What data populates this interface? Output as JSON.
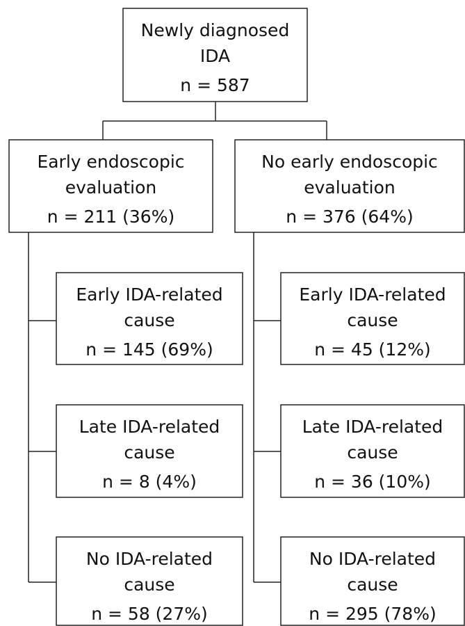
{
  "nodes": [
    {
      "lines": [
        "Newly diagnosed",
        "IDA"
      ],
      "count": "n = 587"
    },
    {
      "lines": [
        "Early endoscopic",
        "evaluation"
      ],
      "count": "n = 211 (36%)"
    },
    {
      "lines": [
        "No early endoscopic",
        "evaluation"
      ],
      "count": "n = 376 (64%)"
    },
    {
      "lines": [
        "Early IDA-related",
        "cause"
      ],
      "count": "n = 145 (69%)"
    },
    {
      "lines": [
        "Late IDA-related",
        "cause"
      ],
      "count": "n = 8 (4%)"
    },
    {
      "lines": [
        "No IDA-related",
        "cause"
      ],
      "count": "n = 58 (27%)"
    },
    {
      "lines": [
        "Early IDA-related",
        "cause"
      ],
      "count": "n = 45 (12%)"
    },
    {
      "lines": [
        "Late IDA-related",
        "cause"
      ],
      "count": "n = 36 (10%)"
    },
    {
      "lines": [
        "No IDA-related",
        "cause"
      ],
      "count": "n = 295 (78%)"
    }
  ]
}
